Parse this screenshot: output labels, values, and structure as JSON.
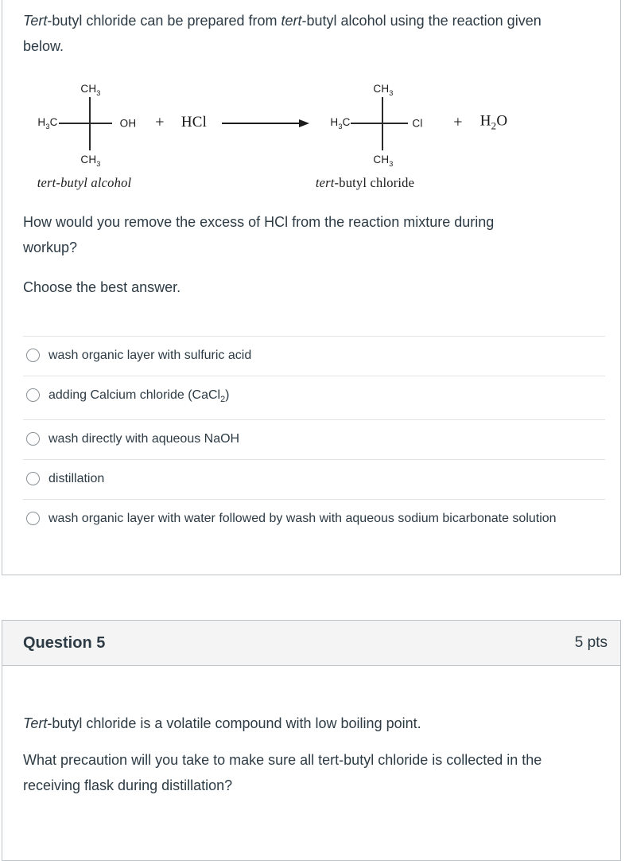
{
  "colors": {
    "text_dark": "#2d3b45",
    "panel_border": "#bfc4c9",
    "separator": "#e1e3e5",
    "header_bg": "#f4f4f4",
    "chem_ink": "#1c1c1c"
  },
  "q4": {
    "intro_segments": [
      {
        "t": "Tert",
        "italic": true
      },
      {
        "t": "-butyl chloride can be prepared from "
      },
      {
        "t": "tert",
        "italic": true
      },
      {
        "t": "-butyl alcohol using the reaction given below."
      }
    ],
    "reaction": {
      "left_structure": {
        "top": [
          {
            "t": "CH"
          },
          {
            "t": "3",
            "sub": true
          }
        ],
        "west": [
          {
            "t": "H"
          },
          {
            "t": "3",
            "sub": true
          },
          {
            "t": "C"
          }
        ],
        "east": [
          {
            "t": "OH"
          }
        ],
        "bottom": [
          {
            "t": "CH"
          },
          {
            "t": "3",
            "sub": true
          }
        ],
        "caption": [
          {
            "t": "tert-butyl alcohol",
            "italic": true
          }
        ]
      },
      "plus1": "+",
      "reagent": "HCl",
      "right_structure": {
        "top": [
          {
            "t": "CH"
          },
          {
            "t": "3",
            "sub": true
          }
        ],
        "west": [
          {
            "t": "H"
          },
          {
            "t": "3",
            "sub": true
          },
          {
            "t": "C"
          }
        ],
        "east": [
          {
            "t": "Cl"
          }
        ],
        "bottom": [
          {
            "t": "CH"
          },
          {
            "t": "3",
            "sub": true
          }
        ],
        "caption": [
          {
            "t": "tert",
            "italic": true
          },
          {
            "t": "-butyl chloride"
          }
        ]
      },
      "plus2": "+",
      "byproduct": [
        {
          "t": "H"
        },
        {
          "t": "2",
          "sub": true
        },
        {
          "t": "O"
        }
      ]
    },
    "prompt": "How would you remove the excess of HCl from the reaction mixture during workup?",
    "choose_label": "Choose the best answer.",
    "options": [
      {
        "segments": [
          {
            "t": "wash organic layer with sulfuric acid"
          }
        ]
      },
      {
        "segments": [
          {
            "t": "adding Calcium chloride (CaCl"
          },
          {
            "t": "2",
            "sub": true
          },
          {
            "t": ")"
          }
        ]
      },
      {
        "segments": [
          {
            "t": "wash directly with aqueous NaOH"
          }
        ]
      },
      {
        "segments": [
          {
            "t": "distillation"
          }
        ]
      },
      {
        "segments": [
          {
            "t": "wash organic layer with water followed by wash with aqueous sodium bicarbonate solution"
          }
        ]
      }
    ]
  },
  "q5": {
    "header": {
      "title": "Question 5",
      "points": "5 pts"
    },
    "p1_segments": [
      {
        "t": "Tert",
        "italic": true
      },
      {
        "t": "-butyl chloride is a volatile compound with low boiling point."
      }
    ],
    "p2": "What precaution will you take to make sure all tert-butyl chloride is collected in the receiving flask during distillation?"
  }
}
